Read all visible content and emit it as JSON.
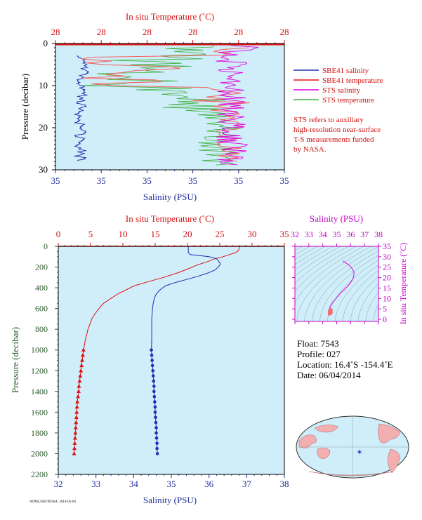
{
  "top_chart": {
    "chart_data": {
      "type": "line",
      "x_top_label": "In situ Temperature (˚C)",
      "x_top_ticks": [
        "28",
        "28",
        "28",
        "28",
        "28",
        "28"
      ],
      "x_bottom_label": "Salinity (PSU)",
      "x_bottom_ticks": [
        "35",
        "35",
        "35",
        "35",
        "35",
        "35"
      ],
      "y_label": "Pressure (decibar)",
      "y_ticks": [
        0,
        10,
        20,
        30
      ],
      "ylim": [
        0,
        30
      ],
      "series": [
        {
          "name": "SBE41 salinity",
          "color": "#1f2fb0"
        },
        {
          "name": "SBE41 temperature",
          "color": "#e01010"
        },
        {
          "name": "STS salinity",
          "color": "#e000e0"
        },
        {
          "name": "STS temperature",
          "color": "#3fb03f"
        }
      ]
    },
    "note_lines": [
      "STS refers to auxiliary",
      "high-resolution near-surface",
      "T-S measurements funded",
      "by NASA."
    ]
  },
  "main_chart": {
    "chart_data": {
      "type": "line",
      "x_top_label": "In situ Temperature (˚C)",
      "x_bottom_label": "Salinity (PSU)",
      "y_label": "Pressure (decibar)",
      "temp_axis": [
        0,
        35
      ],
      "temp_ticks": [
        "0",
        "5",
        "10",
        "15",
        "20",
        "25",
        "30",
        "35"
      ],
      "sal_axis": [
        32,
        38
      ],
      "sal_ticks": [
        "32",
        "33",
        "34",
        "35",
        "36",
        "37",
        "38"
      ],
      "ylim": [
        0,
        2200
      ],
      "y_ticks": [
        "0",
        "200",
        "400",
        "600",
        "800",
        "1000",
        "1200",
        "1400",
        "1600",
        "1800",
        "2000",
        "2200"
      ],
      "temperature_profile": [
        [
          0,
          28.0
        ],
        [
          20,
          28.0
        ],
        [
          40,
          27.9
        ],
        [
          60,
          27.5
        ],
        [
          80,
          26.5
        ],
        [
          100,
          25.5
        ],
        [
          120,
          24.3
        ],
        [
          150,
          23.0
        ],
        [
          180,
          21.5
        ],
        [
          220,
          20.0
        ],
        [
          260,
          18.3
        ],
        [
          300,
          16.3
        ],
        [
          340,
          14.0
        ],
        [
          380,
          11.8
        ],
        [
          420,
          10.5
        ],
        [
          460,
          9.2
        ],
        [
          500,
          8.2
        ],
        [
          550,
          7.0
        ],
        [
          600,
          6.3
        ],
        [
          650,
          5.7
        ],
        [
          700,
          5.2
        ],
        [
          750,
          4.9
        ],
        [
          800,
          4.6
        ],
        [
          850,
          4.4
        ],
        [
          900,
          4.2
        ],
        [
          950,
          4.05
        ],
        [
          1000,
          3.9
        ],
        [
          1050,
          3.8
        ],
        [
          1100,
          3.7
        ],
        [
          1150,
          3.6
        ],
        [
          1200,
          3.5
        ],
        [
          1250,
          3.4
        ],
        [
          1300,
          3.3
        ],
        [
          1350,
          3.2
        ],
        [
          1400,
          3.15
        ],
        [
          1450,
          3.05
        ],
        [
          1500,
          2.95
        ],
        [
          1550,
          2.9
        ],
        [
          1600,
          2.85
        ],
        [
          1650,
          2.8
        ],
        [
          1700,
          2.75
        ],
        [
          1750,
          2.7
        ],
        [
          1800,
          2.65
        ],
        [
          1850,
          2.6
        ],
        [
          1900,
          2.55
        ],
        [
          1950,
          2.5
        ],
        [
          2000,
          2.45
        ]
      ],
      "salinity_profile": [
        [
          0,
          35.45
        ],
        [
          20,
          35.45
        ],
        [
          40,
          35.45
        ],
        [
          60,
          35.45
        ],
        [
          80,
          35.5
        ],
        [
          100,
          36.0
        ],
        [
          120,
          36.2
        ],
        [
          140,
          36.25
        ],
        [
          170,
          36.3
        ],
        [
          200,
          36.25
        ],
        [
          230,
          36.15
        ],
        [
          260,
          35.95
        ],
        [
          290,
          35.7
        ],
        [
          320,
          35.4
        ],
        [
          350,
          35.1
        ],
        [
          380,
          34.85
        ],
        [
          420,
          34.7
        ],
        [
          460,
          34.6
        ],
        [
          500,
          34.55
        ],
        [
          550,
          34.52
        ],
        [
          600,
          34.5
        ],
        [
          700,
          34.48
        ],
        [
          800,
          34.48
        ],
        [
          900,
          34.48
        ],
        [
          1000,
          34.47
        ],
        [
          1050,
          34.48
        ],
        [
          1100,
          34.49
        ],
        [
          1150,
          34.5
        ],
        [
          1200,
          34.51
        ],
        [
          1250,
          34.52
        ],
        [
          1300,
          34.53
        ],
        [
          1350,
          34.54
        ],
        [
          1400,
          34.54
        ],
        [
          1450,
          34.55
        ],
        [
          1500,
          34.56
        ],
        [
          1550,
          34.57
        ],
        [
          1600,
          34.57
        ],
        [
          1650,
          34.58
        ],
        [
          1700,
          34.59
        ],
        [
          1750,
          34.6
        ],
        [
          1800,
          34.6
        ],
        [
          1850,
          34.61
        ],
        [
          1900,
          34.62
        ],
        [
          1950,
          34.62
        ],
        [
          2000,
          34.63
        ]
      ],
      "marker_start_pressure": 1000
    }
  },
  "ts_diagram": {
    "chart_data": {
      "type": "line",
      "x_label": "Salinity (PSU)",
      "x_ticks": [
        "32",
        "33",
        "34",
        "35",
        "36",
        "37",
        "38"
      ],
      "y_label": "In situ Temperature (˚C)",
      "y_ticks": [
        "0",
        "5",
        "10",
        "15",
        "20",
        "25",
        "30",
        "35"
      ],
      "xlim": [
        32,
        38
      ],
      "ylim": [
        -1,
        35
      ],
      "curve": [
        [
          35.45,
          28.0
        ],
        [
          35.9,
          26.0
        ],
        [
          36.15,
          24.0
        ],
        [
          36.25,
          22.0
        ],
        [
          36.2,
          20.0
        ],
        [
          36.05,
          18.0
        ],
        [
          35.8,
          16.0
        ],
        [
          35.5,
          14.0
        ],
        [
          35.2,
          12.0
        ],
        [
          34.95,
          10.0
        ],
        [
          34.75,
          8.5
        ],
        [
          34.6,
          7.0
        ],
        [
          34.52,
          6.0
        ],
        [
          34.48,
          5.0
        ],
        [
          34.48,
          4.0
        ],
        [
          34.52,
          3.3
        ],
        [
          34.6,
          2.6
        ]
      ]
    }
  },
  "float_info": {
    "float": "Float:  7543",
    "profile": "Profile:  027",
    "location": "Location:  16.4˚S  -154.4˚E",
    "date": "Date:  06/04/2014"
  },
  "footer_text": "AOML/SIO/NOAA, 2014-05-04"
}
